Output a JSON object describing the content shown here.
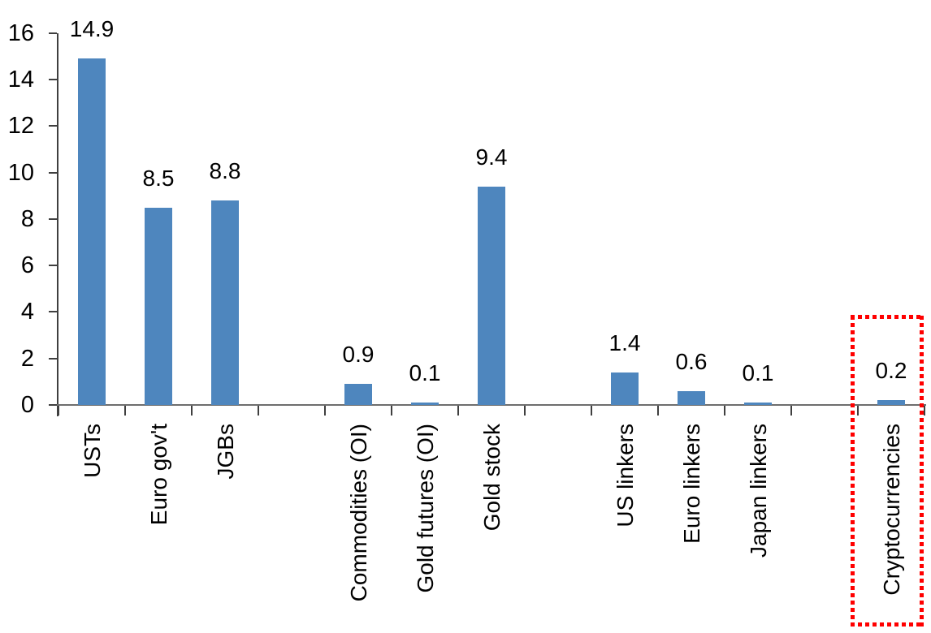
{
  "chart_data": {
    "type": "bar",
    "title": "",
    "categories": [
      "USTs",
      "Euro gov't",
      "JGBs",
      "",
      "Commodities (OI)",
      "Gold futures (OI)",
      "Gold stock",
      "",
      "US linkers",
      "Euro linkers",
      "Japan linkers",
      "",
      "Cryptocurrencies"
    ],
    "values": [
      14.9,
      8.5,
      8.8,
      null,
      0.9,
      0.1,
      9.4,
      null,
      1.4,
      0.6,
      0.1,
      null,
      0.2
    ],
    "data_labels": [
      "14.9",
      "8.5",
      "8.8",
      "",
      "0.9",
      "0.1",
      "9.4",
      "",
      "1.4",
      "0.6",
      "0.1",
      "",
      "0.2"
    ],
    "xlabel": "",
    "ylabel": "",
    "ylim": [
      0,
      16
    ],
    "yticks": [
      "0",
      "2",
      "4",
      "6",
      "8",
      "10",
      "12",
      "14",
      "16"
    ],
    "grid": false,
    "legend": null,
    "colors": {
      "bar": "#4E86BE",
      "axis": "#3f3f3f",
      "baseline": "#6e6e6e",
      "text": "#000000",
      "highlight": "#ff0000"
    },
    "highlight_box": {
      "category": "Cryptocurrencies",
      "style": "dotted",
      "color": "#ff0000"
    }
  }
}
